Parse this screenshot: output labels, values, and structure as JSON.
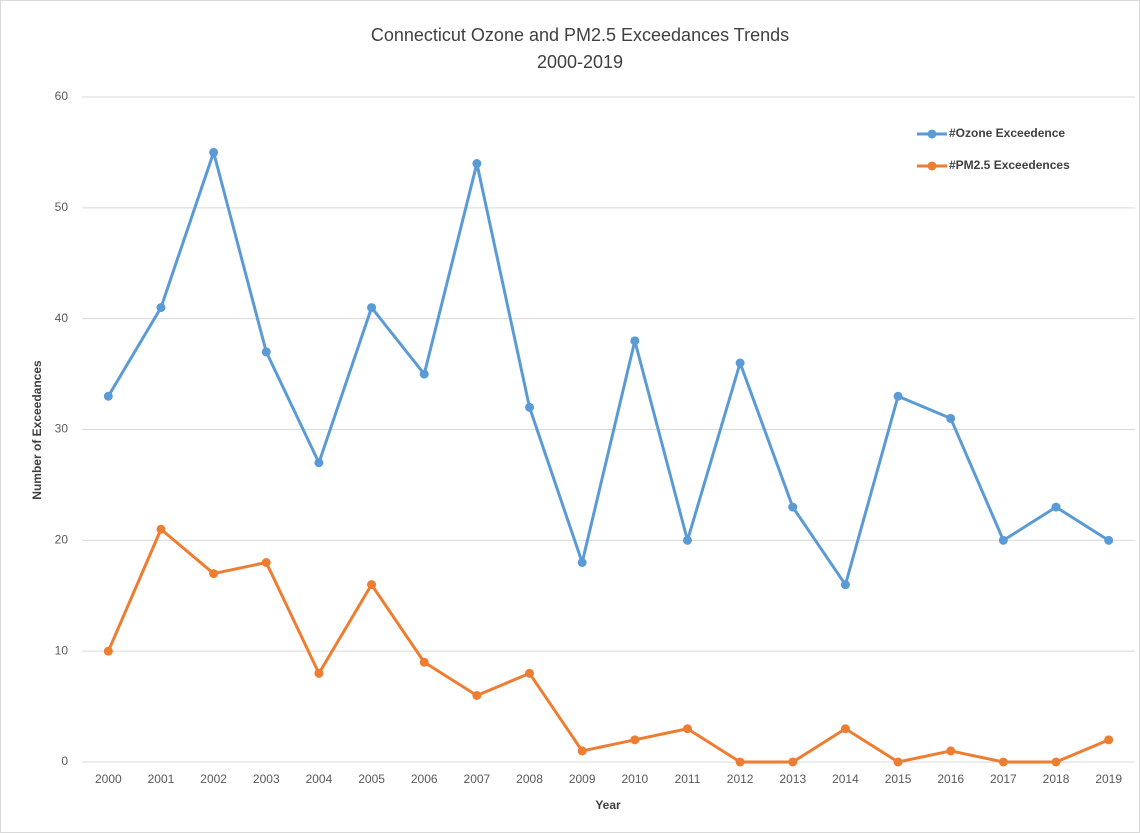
{
  "chart_data": {
    "type": "line",
    "title": "Connecticut Ozone and PM2.5 Exceedances Trends",
    "subtitle": "2000-2019",
    "x_label": "Year",
    "y_label": "Number of Exceedances",
    "categories": [
      "2000",
      "2001",
      "2002",
      "2003",
      "2004",
      "2005",
      "2006",
      "2007",
      "2008",
      "2009",
      "2010",
      "2011",
      "2012",
      "2013",
      "2014",
      "2015",
      "2016",
      "2017",
      "2018",
      "2019"
    ],
    "series": [
      {
        "name": "#Ozone Exceedence",
        "color": "#5b9bd5",
        "values": [
          33,
          41,
          55,
          37,
          27,
          41,
          35,
          54,
          32,
          18,
          38,
          20,
          36,
          23,
          16,
          33,
          31,
          20,
          23,
          20
        ]
      },
      {
        "name": "#PM2.5 Exceedences",
        "color": "#ed7d31",
        "values": [
          10,
          21,
          17,
          18,
          8,
          16,
          9,
          6,
          8,
          1,
          2,
          3,
          0,
          0,
          3,
          0,
          1,
          0,
          0,
          2
        ]
      }
    ],
    "ylim": [
      0,
      60
    ],
    "yticks": [
      0,
      10,
      20,
      30,
      40,
      50,
      60
    ],
    "grid": true,
    "legend": "top-right"
  }
}
